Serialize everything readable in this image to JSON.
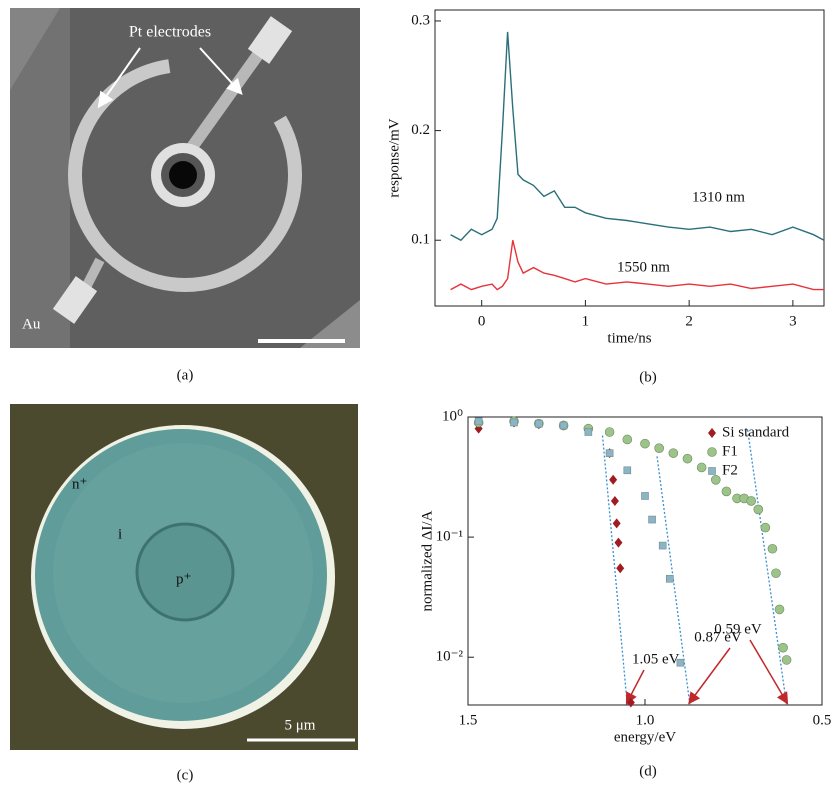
{
  "panels": [
    {
      "label": "(a)",
      "electrodes": "Pt electrodes",
      "metal": "Au"
    },
    {
      "label": "(c)",
      "n_region": "n⁺",
      "i_region": "i",
      "p_region": "p⁺",
      "scale": "5 μm"
    }
  ],
  "chart_data": [
    {
      "type": "line",
      "panel_label": "(b)",
      "x_label": "time/ns",
      "y_label": "response/mV",
      "x": [
        -0.3,
        -0.2,
        -0.1,
        0,
        0.1,
        0.15,
        0.2,
        0.25,
        0.3,
        0.35,
        0.4,
        0.5,
        0.6,
        0.7,
        0.8,
        0.9,
        1.0,
        1.2,
        1.4,
        1.6,
        1.8,
        2.0,
        2.2,
        2.4,
        2.6,
        2.8,
        3.0,
        3.2,
        3.3
      ],
      "series": [
        {
          "name": "1310 nm",
          "color": "#2a6f7a",
          "values": [
            0.105,
            0.1,
            0.11,
            0.105,
            0.11,
            0.12,
            0.2,
            0.29,
            0.22,
            0.16,
            0.155,
            0.15,
            0.14,
            0.145,
            0.13,
            0.13,
            0.125,
            0.12,
            0.118,
            0.115,
            0.112,
            0.11,
            0.112,
            0.108,
            0.11,
            0.105,
            0.112,
            0.105,
            0.1
          ]
        },
        {
          "name": "1550 nm",
          "color": "#e8333a",
          "values": [
            0.055,
            0.06,
            0.055,
            0.058,
            0.06,
            0.055,
            0.058,
            0.065,
            0.1,
            0.08,
            0.07,
            0.075,
            0.07,
            0.068,
            0.065,
            0.062,
            0.065,
            0.06,
            0.062,
            0.06,
            0.058,
            0.06,
            0.058,
            0.06,
            0.056,
            0.058,
            0.06,
            0.055,
            0.055
          ]
        }
      ],
      "xlim": [
        -0.45,
        3.3
      ],
      "xticks": [
        0,
        1,
        2,
        3
      ],
      "ylim": [
        0.04,
        0.31
      ],
      "yticks": [
        0.1,
        0.2,
        0.3
      ]
    },
    {
      "type": "scatter",
      "panel_label": "(d)",
      "x_label": "energy/eV",
      "y_label": "normalized ΔI/A",
      "log_y": true,
      "legend": "top-right",
      "series": [
        {
          "name": "Si standard",
          "color": "#a01c22",
          "marker": "diamond",
          "x": [
            1.47,
            1.37,
            1.3,
            1.23,
            1.16,
            1.1,
            1.09,
            1.085,
            1.08,
            1.075,
            1.07,
            1.04
          ],
          "values": [
            0.8,
            0.9,
            0.87,
            0.85,
            0.8,
            0.5,
            0.3,
            0.2,
            0.13,
            0.09,
            0.055,
            0.0042
          ]
        },
        {
          "name": "F1",
          "color": "#9cc48a",
          "marker": "circle",
          "x": [
            1.47,
            1.37,
            1.3,
            1.23,
            1.16,
            1.1,
            1.05,
            1.0,
            0.96,
            0.92,
            0.88,
            0.84,
            0.8,
            0.77,
            0.74,
            0.72,
            0.7,
            0.68,
            0.66,
            0.64,
            0.63,
            0.62,
            0.61,
            0.6
          ],
          "values": [
            0.9,
            0.92,
            0.88,
            0.85,
            0.8,
            0.75,
            0.65,
            0.6,
            0.55,
            0.5,
            0.45,
            0.38,
            0.3,
            0.24,
            0.21,
            0.21,
            0.2,
            0.17,
            0.12,
            0.08,
            0.05,
            0.025,
            0.012,
            0.0095
          ]
        },
        {
          "name": "F2",
          "color": "#8db4c2",
          "marker": "square",
          "x": [
            1.47,
            1.37,
            1.3,
            1.23,
            1.16,
            1.1,
            1.05,
            1.0,
            0.98,
            0.95,
            0.93,
            0.9
          ],
          "values": [
            0.92,
            0.9,
            0.88,
            0.85,
            0.75,
            0.5,
            0.36,
            0.22,
            0.14,
            0.085,
            0.045,
            0.009
          ]
        }
      ],
      "fits": [
        {
          "color": "#3a8fd0",
          "x": [
            1.12,
            1.05
          ],
          "y": [
            0.7,
            0.004
          ],
          "text": "1.05 eV"
        },
        {
          "color": "#3a8fd0",
          "x": [
            0.966,
            0.873
          ],
          "y": [
            0.47,
            0.004
          ],
          "text": "0.87 eV"
        },
        {
          "color": "#3a8fd0",
          "x": [
            0.71,
            0.6
          ],
          "y": [
            0.78,
            0.004
          ],
          "text": "0.59 eV"
        }
      ],
      "xlim": [
        1.5,
        0.5
      ],
      "xticks": [
        1.5,
        {
          "value": 1,
          "label": "1.0"
        },
        0.5
      ],
      "ylim": [
        0.004,
        1
      ],
      "yticks": [
        {
          "value": 1,
          "label": "10⁰"
        },
        {
          "value": 0.1,
          "label": "10⁻¹"
        },
        {
          "value": 0.01,
          "label": "10⁻²"
        }
      ]
    }
  ]
}
